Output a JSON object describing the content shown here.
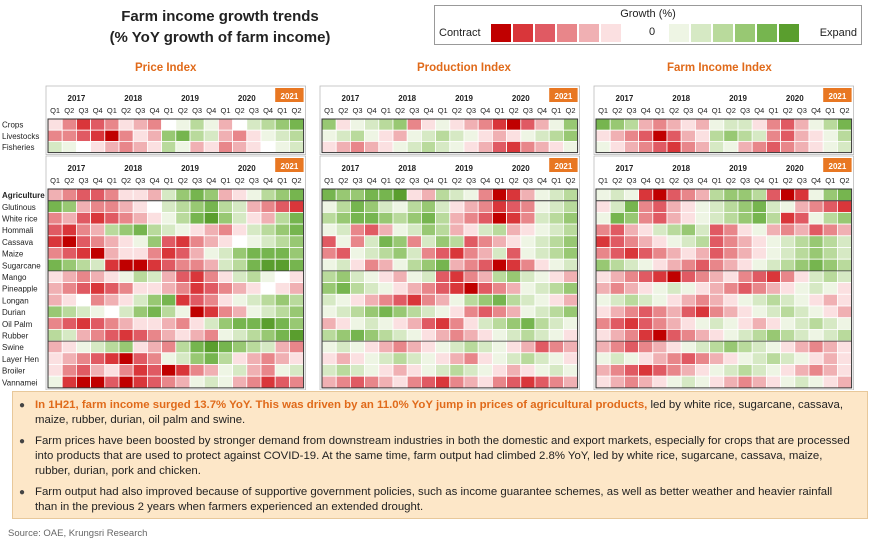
{
  "title": {
    "line1": "Farm income growth trends",
    "line2": "(% YoY growth of farm income)"
  },
  "legend": {
    "title": "Growth (%)",
    "left_label": "Contract",
    "zero_label": "0",
    "right_label": "Expand",
    "colors": [
      "#c00000",
      "#d9363a",
      "#e05a63",
      "#e8868a",
      "#f0b0b3",
      "#fbe0e1",
      "#ffffff",
      "#eef5e4",
      "#d6e9c4",
      "#b9da9c",
      "#98c873",
      "#76b54f",
      "#5a9e2e"
    ]
  },
  "panel_titles": [
    "Price Index",
    "Production Index",
    "Farm Income Index"
  ],
  "chart_data": {
    "type": "heatmap",
    "years": [
      "2017",
      "2018",
      "2019",
      "2020"
    ],
    "year_badge": "2021",
    "quarters": [
      "Q1",
      "Q2",
      "Q3",
      "Q4",
      "Q1",
      "Q2",
      "Q3",
      "Q4",
      "Q1",
      "Q2",
      "Q3",
      "Q4",
      "Q1",
      "Q2",
      "Q3",
      "Q4",
      "Q1",
      "Q2"
    ],
    "scale": "levels -6 (strong contraction) to +6 (strong expansion)",
    "top_rows": [
      "Crops",
      "Livestocks",
      "Fisheries"
    ],
    "bottom_rows": [
      "Agriculture",
      "Glutinous",
      "White rice",
      "Hommali",
      "Cassava",
      "Maize",
      "Sugarcane",
      "Mango",
      "Pineapple",
      "Longan",
      "Durian",
      "Oil Palm",
      "Rubber",
      "Swine",
      "Layer Hen",
      "Broiler",
      "Vannamei"
    ],
    "panels": [
      {
        "name": "Price Index",
        "top": [
          "-1 -3 -5 -4 -3 -1 -2 -3 0 1 3 1 -2 0 2 3 4 5",
          "-3 -3 -4 -5 -6 -3 -1 -2 4 5 3 2 -2 -3 -1 1 2 3",
          "2 1 0 -1 -2 -3 -2 -1 3 1 -2 -1 -3 -2 -1 0 1 2"
        ],
        "bottom": [
          "-2 -3 -4 -4 -3 -1 -1 -2 2 4 5 4 -2 -1 1 3 4 5",
          "5 4 -2 -3 -3 -2 -1 0 2 3 4 5 3 2 -2 -3 -4 -5",
          "-3 -2 -4 -5 -4 -3 -2 -1 1 3 5 6 4 2 -1 -2 3 5",
          "-4 -5 -3 -2 3 4 5 3 2 1 -1 -2 -3 -1 2 3 4 5",
          "-5 -6 -4 -3 -2 -1 1 4 -4 -5 -3 -2 -1 0 1 2 3 4",
          "-3 -4 -5 -6 -2 -1 -1 -3 -5 -4 -2 1 2 4 5 5 5 4",
          "5 4 3 2 -5 -6 -6 -5 -4 -3 -3 -2 2 3 5 6 6 5",
          "-1 -2 -3 -2 -1 1 3 2 -2 -4 -5 -3 -1 2 3 1 0 -1",
          "-2 -3 -4 -5 -4 -3 -1 -1 -2 -3 -5 -4 -3 -2 -1 0 -1 -2",
          "-2 -1 0 -3 -2 -1 2 4 5 -5 -4 -3 -1 1 2 3 4 3",
          "4 3 2 1 0 2 4 5 3 1 -6 -5 -3 -2 1 2 3 4",
          "-3 -4 -5 -4 -3 -2 -1 -1 -2 -3 -1 2 4 5 5 6 5 4",
          "3 2 -2 -3 -4 -5 -4 -3 -2 -1 -2 -3 1 2 3 4 5 6",
          "-2 -1 1 2 3 4 -1 -2 -3 3 5 6 5 4 3 2 -2 -3",
          "-1 -2 -3 -4 -5 -6 -4 -3 1 2 4 5 3 -1 -2 -3 -2 -1",
          "-1 -3 -4 -2 -1 -3 -5 -4 -6 -5 -3 -2 1 2 -2 -3 1 2",
          "1 -5 -6 -6 -4 -6 -5 -4 -3 -2 1 2 1 -2 -3 -5 -4 -3"
        ]
      },
      {
        "name": "Production Index",
        "top": [
          "4 -1 1 2 3 4 -3 -1 1 -1 -2 -3 -5 -6 -4 -2 1 4",
          "1 2 3 1 -1 -2 1 2 3 2 1 -1 -2 -1 1 2 3 4",
          "-1 -2 -3 -2 -1 1 2 3 2 1 -1 -2 -4 -5 -3 -2 -1 1"
        ],
        "bottom": [
          "5 4 4 5 5 6 -1 -2 3 2 1 -3 -6 -5 -2 1 2 3",
          "1 3 5 4 2 1 3 4 2 -1 -2 -3 -5 -4 -3 1 2 3",
          "3 4 5 5 4 3 4 5 3 -2 -3 -4 -6 -5 -3 2 3 4",
          "1 2 -3 -4 -2 1 2 4 3 -2 -1 2 3 -2 -1 1 2 3",
          "-4 1 -3 2 5 4 -3 2 4 3 -4 -3 -2 -1 1 2 3 4",
          "-3 -4 1 2 3 4 2 -3 -4 -5 -3 -2 2 -4 1 2 3 4",
          "1 2 -1 -3 -2 1 3 4 5 -2 -3 -4 -6 -5 -3 -1 1 2",
          "3 4 2 1 -1 -2 1 2 -4 -5 -3 -2 3 4 2 1 -1 -2",
          "4 5 3 2 1 -1 -2 -3 -4 -5 -6 -4 -3 -2 1 2 3 4",
          "2 1 -1 -2 -3 -4 -5 -3 -2 1 3 4 5 3 2 1 -1 -2",
          "1 2 3 4 5 4 3 2 1 -1 -3 -4 -3 -2 1 2 3 4",
          "-2 -1 1 2 1 -1 -2 -4 -5 -3 -1 2 3 4 5 3 2 1",
          "3 4 5 4 3 2 1 -1 -2 -3 -2 -1 1 2 3 2 1 -1",
          "1 2 1 -1 -2 -3 -2 -1 1 2 3 2 1 -1 -2 -4 -3 -2",
          "-1 -2 -1 1 2 3 2 1 -1 -2 -3 -1 1 2 3 2 1 -1",
          "2 3 2 1 -1 -2 -1 1 2 3 2 1 -1 -2 -1 1 2 1",
          "-2 -3 -4 -3 -2 -1 -3 -4 -5 -3 -2 -1 -3 -4 -5 -4 -3 -2"
        ]
      },
      {
        "name": "Farm Income Index",
        "top": [
          "5 4 3 -2 -3 -2 -1 -2 1 2 2 -1 -3 -4 -2 1 3 5",
          "-1 -2 -3 -4 -6 -4 -2 -1 3 4 3 2 -3 -4 -2 -1 1 3",
          "1 -1 -2 -3 -4 -5 -3 -2 2 1 -2 -3 -4 -3 -2 -1 1 2"
        ],
        "bottom": [
          "1 2 1 -5 -6 -4 -3 -2 3 4 4 3 -4 -6 -5 1 4 5",
          "-1 2 5 -3 -4 -2 -1 1 2 3 4 5 2 1 -2 -3 -4 -5",
          "1 5 4 -3 -4 -2 -1 1 2 3 4 5 3 -5 -4 1 3 4",
          "-3 -4 -2 -1 2 3 4 2 -4 -3 -1 1 -2 -3 -2 -4 -3 -2",
          "-5 -4 -3 -2 -1 1 2 3 -4 -3 -2 -1 1 2 3 4 3 2",
          "-3 -4 -5 -4 -3 -2 -1 -2 -4 -3 -2 -1 1 2 3 4 3 2",
          "4 3 2 1 -1 -2 -3 -4 -3 -2 -1 1 2 3 4 5 4 3",
          "-1 -2 -3 -4 -5 -6 -4 -3 -2 -1 -3 -4 -5 -3 -1 2 3 2",
          "-2 -3 -2 -1 1 2 1 -1 -2 -3 -4 -3 -2 -1 1 2 1 -1",
          "1 2 3 2 1 -1 -2 -3 -2 -1 1 2 3 2 1 -1 -2 -1",
          "-1 -2 -3 -4 -3 -2 -4 -5 -3 -2 -1 1 2 3 2 1 -1 -2",
          "-3 -4 -5 -4 -3 -2 -1 1 2 1 -1 -2 -1 1 2 3 2 1",
          "-1 -2 -3 -5 -6 -4 -3 -2 -1 1 2 3 4 3 2 1 2 3",
          "-2 -3 -4 -3 -2 -1 1 2 3 4 3 2 1 -1 -2 -3 -2 -1",
          "1 2 1 -1 -2 -3 -4 -3 -2 -1 1 2 3 2 1 -1 -2 -1",
          "-2 -3 -4 -5 -4 -3 -2 -1 1 2 3 2 1 -1 -2 -3 -2 -1",
          "-1 -2 -3 -2 -1 1 2 1 -1 -2 -3 -2 -1 1 2 1 -1 -2"
        ]
      }
    ]
  },
  "summary": [
    {
      "highlight": "In 1H21, farm income surged 13.7% YoY. This was driven by an 11.0% YoY jump in prices of agricultural products,",
      "rest": " led by white rice, sugarcane, cassava, maize, rubber, durian, oil palm and swine."
    },
    {
      "highlight": "",
      "rest": "Farm prices have been boosted by stronger demand from downstream industries in both the domestic and export markets, especially for crops that are processed into products that are used to protect against COVID-19. At the same time, farm output had climbed 2.8% YoY, led by white rice, sugarcane, cassava, maize, rubber, durian, pork and chicken."
    },
    {
      "highlight": "",
      "rest": "Farm output had also improved because of supportive government policies, such as income guarantee schemes, as well as  better weather and heavier rainfall than in the previous 2 years when farmers experienced an extended drought."
    }
  ],
  "source": "Source: OAE, Krungsri Research"
}
